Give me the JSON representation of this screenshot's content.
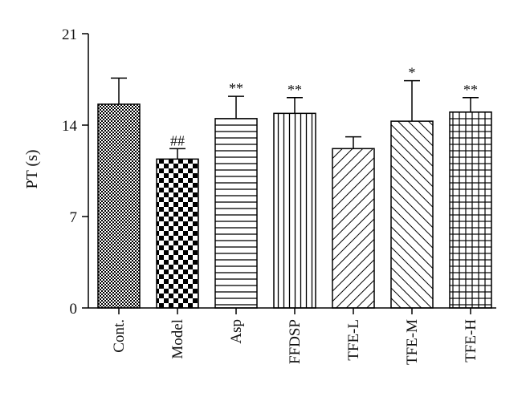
{
  "chart_data": {
    "type": "bar",
    "title": "",
    "xlabel": "",
    "ylabel": "PT (s)",
    "ylim": [
      0,
      21
    ],
    "yticks": [
      0,
      7,
      14,
      21
    ],
    "grid": false,
    "categories": [
      "Cont.",
      "Model",
      "Asp",
      "FFDSP",
      "TFE-L",
      "TFE-M",
      "TFE-H"
    ],
    "values": [
      15.6,
      11.4,
      14.5,
      14.9,
      12.2,
      14.3,
      15.0
    ],
    "errors": [
      2.0,
      0.8,
      1.7,
      1.2,
      0.9,
      3.1,
      1.1
    ],
    "significance": [
      "",
      "##",
      "**",
      "**",
      "",
      "*",
      "**"
    ],
    "patterns": [
      "fine-checker",
      "large-checker",
      "horizontal-lines",
      "vertical-lines",
      "diagonal-up",
      "diagonal-down",
      "grid"
    ]
  }
}
